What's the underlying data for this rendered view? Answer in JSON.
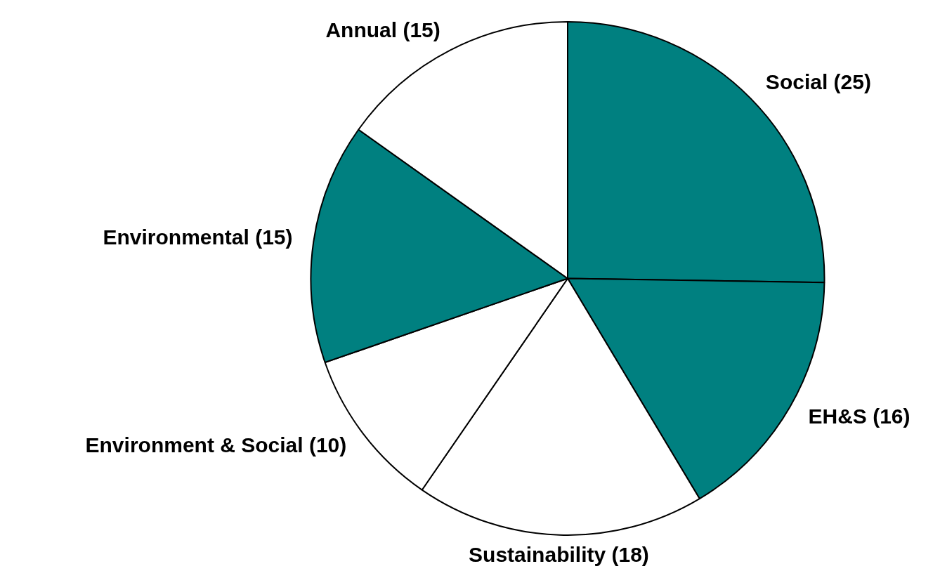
{
  "chart_data": {
    "type": "pie",
    "categories": [
      "Social",
      "EH&S",
      "Sustainability",
      "Environment & Social",
      "Environmental",
      "Annual"
    ],
    "values": [
      25,
      16,
      18,
      10,
      15,
      15
    ],
    "value_labels": [
      "(25)",
      "(16)",
      "(18)",
      "(10)",
      "(15)",
      "(15)"
    ],
    "colors": [
      "#008080",
      "#008080",
      "#ffffff",
      "#ffffff",
      "#008080",
      "#ffffff"
    ],
    "legend": false
  }
}
